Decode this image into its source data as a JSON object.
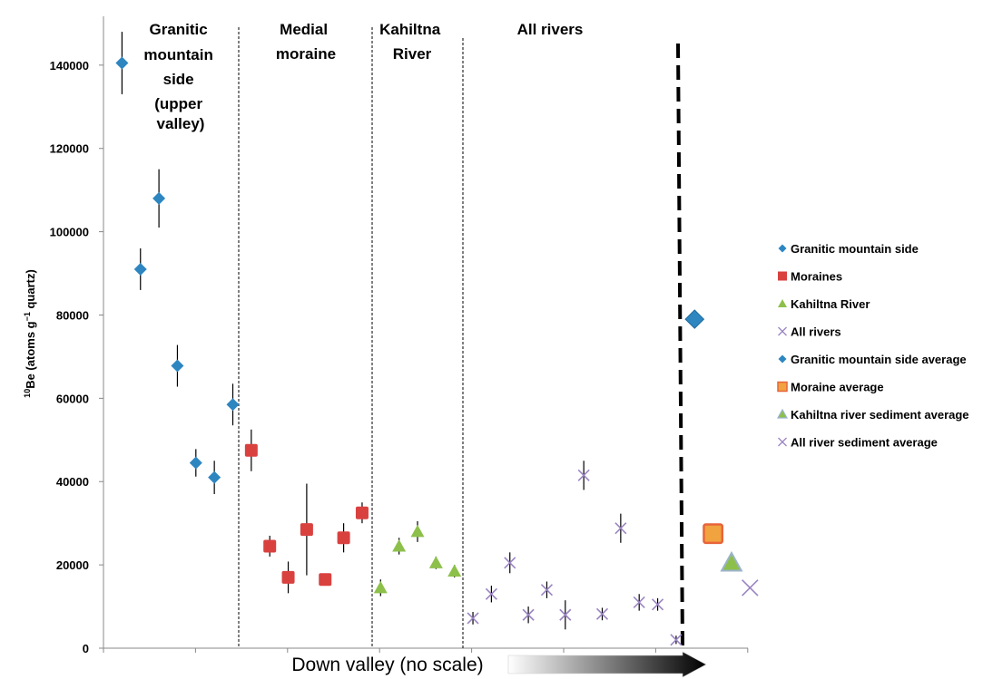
{
  "chart_data": {
    "type": "scatter",
    "title": "",
    "xlabel": "Down valley (no scale)",
    "ylabel_prefix": "10",
    "ylabel_main": "Be (atoms g",
    "ylabel_exp": "−1",
    "ylabel_suffix": " quartz)",
    "ylim": [
      0,
      150000
    ],
    "yticks": [
      0,
      20000,
      40000,
      60000,
      80000,
      100000,
      120000,
      140000
    ],
    "ytick_labels": [
      "0",
      "20000",
      "40000",
      "60000",
      "80000",
      "100000",
      "120000",
      "140000"
    ],
    "regions": [
      {
        "lines": [
          "Granitic",
          "mountain",
          "side",
          "(upper",
          "valley)"
        ]
      },
      {
        "lines": [
          "Medial",
          "moraine"
        ]
      },
      {
        "lines": [
          "Kahiltna",
          "River"
        ]
      },
      {
        "lines": [
          "All rivers"
        ]
      }
    ],
    "legend_placement": "right",
    "series": [
      {
        "name": "Granitic mountain side",
        "marker": "diamond",
        "color": "#2e86c1",
        "points": [
          {
            "x": 1,
            "y": 140500,
            "err": 7500
          },
          {
            "x": 2,
            "y": 91000,
            "err": 5000
          },
          {
            "x": 3,
            "y": 108000,
            "err": 7000
          },
          {
            "x": 4,
            "y": 67800,
            "err": 5000
          },
          {
            "x": 5,
            "y": 44500,
            "err": 3300
          },
          {
            "x": 6,
            "y": 41000,
            "err": 4000
          },
          {
            "x": 7,
            "y": 58500,
            "err": 5000
          }
        ]
      },
      {
        "name": "Moraines",
        "marker": "square",
        "color": "#d9413f",
        "points": [
          {
            "x": 8,
            "y": 47500,
            "err": 5000
          },
          {
            "x": 9,
            "y": 24500,
            "err": 2500
          },
          {
            "x": 10,
            "y": 17000,
            "err": 3800
          },
          {
            "x": 11,
            "y": 28500,
            "err": 11000
          },
          {
            "x": 12,
            "y": 16500,
            "err": 1000
          },
          {
            "x": 13,
            "y": 26500,
            "err": 3500
          },
          {
            "x": 14,
            "y": 32500,
            "err": 2500
          }
        ]
      },
      {
        "name": "Kahiltna River",
        "marker": "triangle",
        "color": "#8dc04b",
        "points": [
          {
            "x": 15,
            "y": 14500,
            "err": 2000
          },
          {
            "x": 16,
            "y": 24500,
            "err": 2000
          },
          {
            "x": 17,
            "y": 28000,
            "err": 2500
          },
          {
            "x": 18,
            "y": 20500,
            "err": 1500
          },
          {
            "x": 19,
            "y": 18500,
            "err": 1500
          }
        ]
      },
      {
        "name": "All rivers",
        "marker": "x",
        "color": "#9b85c2",
        "points": [
          {
            "x": 20,
            "y": 7200,
            "err": 1500
          },
          {
            "x": 21,
            "y": 13000,
            "err": 2000
          },
          {
            "x": 22,
            "y": 20500,
            "err": 2500
          },
          {
            "x": 23,
            "y": 8000,
            "err": 2000
          },
          {
            "x": 24,
            "y": 14000,
            "err": 2000
          },
          {
            "x": 25,
            "y": 8000,
            "err": 3500
          },
          {
            "x": 26,
            "y": 41500,
            "err": 3500
          },
          {
            "x": 27,
            "y": 8200,
            "err": 1500
          },
          {
            "x": 28,
            "y": 28800,
            "err": 3500
          },
          {
            "x": 29,
            "y": 11000,
            "err": 2000
          },
          {
            "x": 30,
            "y": 10500,
            "err": 1500
          },
          {
            "x": 31,
            "y": 2000,
            "err": 1000
          }
        ]
      },
      {
        "name": "Granitic mountain side average",
        "marker": "diamond-big",
        "color": "#2e86c1",
        "points": [
          {
            "x": 32,
            "y": 79000
          }
        ]
      },
      {
        "name": "Moraine average",
        "marker": "square-big",
        "color": "#f0a33e",
        "points": [
          {
            "x": 33,
            "y": 27500
          }
        ]
      },
      {
        "name": "Kahiltna river sediment average",
        "marker": "triangle-big",
        "color": "#8dc04b",
        "points": [
          {
            "x": 34,
            "y": 20500
          }
        ]
      },
      {
        "name": "All river sediment average",
        "marker": "x-big",
        "color": "#9b85c2",
        "points": [
          {
            "x": 35,
            "y": 14500
          }
        ]
      }
    ]
  }
}
